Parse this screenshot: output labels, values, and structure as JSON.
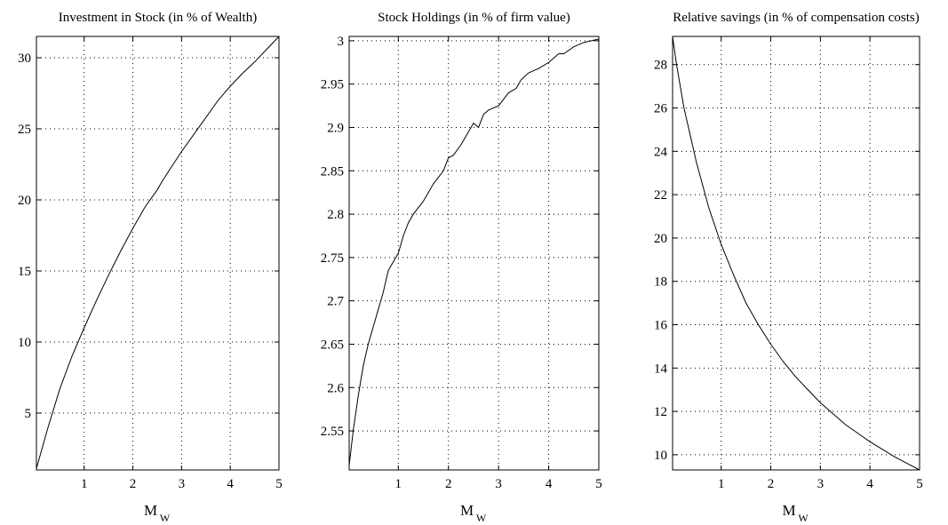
{
  "chart_data": [
    {
      "type": "line",
      "title": "Investment in Stock (in % of Wealth)",
      "xlabel": "M",
      "xlabel_sub": "W",
      "xlim": [
        0.02,
        5
      ],
      "ylim": [
        1,
        31.5
      ],
      "xticks": [
        1,
        2,
        3,
        4,
        5
      ],
      "yticks": [
        5,
        10,
        15,
        20,
        25,
        30
      ],
      "grid": true,
      "series": [
        {
          "x": [
            0.02,
            0.25,
            0.5,
            0.75,
            1.0,
            1.25,
            1.5,
            1.75,
            2.0,
            2.25,
            2.5,
            2.6,
            2.75,
            3.0,
            3.25,
            3.5,
            3.75,
            4.0,
            4.25,
            4.5,
            4.75,
            5.0
          ],
          "values": [
            1.1,
            3.9,
            6.7,
            9.0,
            11.0,
            12.9,
            14.7,
            16.4,
            18.0,
            19.5,
            20.7,
            21.3,
            22.1,
            23.4,
            24.6,
            25.8,
            27.0,
            28.0,
            28.9,
            29.7,
            30.6,
            31.5
          ]
        }
      ]
    },
    {
      "type": "line",
      "title": "Stock Holdings (in % of firm value)",
      "xlabel": "M",
      "xlabel_sub": "W",
      "xlim": [
        0.02,
        5
      ],
      "ylim": [
        2.505,
        3.005
      ],
      "xticks": [
        1,
        2,
        3,
        4,
        5
      ],
      "yticks": [
        2.55,
        2.6,
        2.65,
        2.7,
        2.75,
        2.8,
        2.85,
        2.9,
        2.95,
        3
      ],
      "grid": true,
      "series": [
        {
          "x": [
            0.02,
            0.1,
            0.2,
            0.3,
            0.4,
            0.5,
            0.6,
            0.7,
            0.8,
            0.9,
            1.0,
            1.1,
            1.2,
            1.3,
            1.5,
            1.7,
            1.9,
            2.0,
            2.1,
            2.25,
            2.4,
            2.5,
            2.6,
            2.7,
            2.8,
            3.0,
            3.2,
            3.35,
            3.45,
            3.6,
            3.8,
            4.0,
            4.2,
            4.3,
            4.5,
            4.7,
            4.85,
            5.0
          ],
          "values": [
            2.51,
            2.55,
            2.59,
            2.625,
            2.65,
            2.67,
            2.69,
            2.71,
            2.735,
            2.745,
            2.755,
            2.775,
            2.79,
            2.8,
            2.815,
            2.835,
            2.85,
            2.865,
            2.868,
            2.88,
            2.895,
            2.905,
            2.9,
            2.915,
            2.92,
            2.925,
            2.94,
            2.945,
            2.955,
            2.963,
            2.968,
            2.975,
            2.985,
            2.985,
            2.993,
            2.998,
            3.0,
            3.002
          ]
        }
      ]
    },
    {
      "type": "line",
      "title": "Relative savings (in % of compensation costs)",
      "xlabel": "M",
      "xlabel_sub": "W",
      "xlim": [
        0.02,
        5
      ],
      "ylim": [
        9.3,
        29.3
      ],
      "xticks": [
        1,
        2,
        3,
        4,
        5
      ],
      "yticks": [
        10,
        12,
        14,
        16,
        18,
        20,
        22,
        24,
        26,
        28
      ],
      "grid": true,
      "series": [
        {
          "x": [
            0.02,
            0.1,
            0.25,
            0.5,
            0.75,
            1.0,
            1.25,
            1.5,
            1.75,
            2.0,
            2.25,
            2.5,
            2.75,
            3.0,
            3.25,
            3.5,
            3.75,
            4.0,
            4.25,
            4.5,
            4.75,
            5.0
          ],
          "values": [
            29.3,
            28.0,
            26.0,
            23.5,
            21.4,
            19.7,
            18.3,
            17.0,
            16.0,
            15.1,
            14.3,
            13.6,
            13.0,
            12.4,
            11.9,
            11.4,
            11.0,
            10.6,
            10.25,
            9.9,
            9.6,
            9.3
          ]
        }
      ]
    }
  ]
}
